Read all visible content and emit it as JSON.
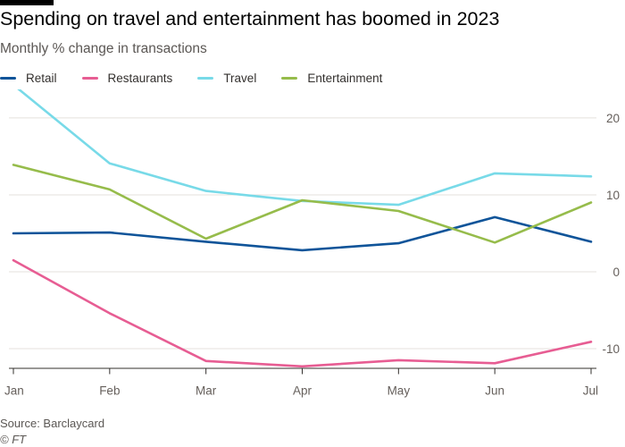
{
  "header": {
    "title": "Spending on travel and entertainment has boomed in 2023",
    "subtitle": "Monthly % change in transactions"
  },
  "footer": {
    "source": "Source: Barclaycard",
    "credit": "© FT"
  },
  "colors": {
    "grid": "#e5e1dc",
    "axis": "#33302e",
    "tick_text": "#66605c"
  },
  "chart_data": {
    "type": "line",
    "title": "Spending on travel and entertainment has boomed in 2023",
    "subtitle": "Monthly % change in transactions",
    "xlabel": "",
    "ylabel": "",
    "categories": [
      "Jan",
      "Feb",
      "Mar",
      "Apr",
      "May",
      "Jun",
      "Jul"
    ],
    "ylim": [
      -12.5,
      24
    ],
    "yticks": [
      -10,
      0,
      10,
      20
    ],
    "y_axis_side": "right",
    "grid": true,
    "legend_position": "top-left",
    "series": [
      {
        "name": "Retail",
        "color": "#0f5499",
        "values": [
          5.0,
          5.1,
          3.9,
          2.8,
          3.7,
          7.1,
          3.9
        ]
      },
      {
        "name": "Restaurants",
        "color": "#e75d93",
        "values": [
          1.5,
          -5.4,
          -11.6,
          -12.3,
          -11.5,
          -11.9,
          -9.1
        ]
      },
      {
        "name": "Travel",
        "color": "#78dae8",
        "values": [
          24.3,
          14.1,
          10.5,
          9.2,
          8.7,
          12.8,
          12.4
        ]
      },
      {
        "name": "Entertainment",
        "color": "#96bc4b",
        "values": [
          13.9,
          10.7,
          4.3,
          9.3,
          7.9,
          3.8,
          9.0
        ]
      }
    ]
  }
}
